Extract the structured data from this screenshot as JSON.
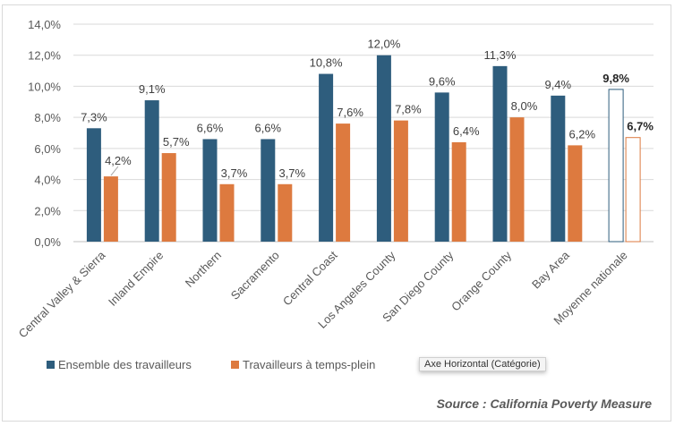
{
  "chart_data": {
    "type": "bar",
    "categories": [
      "Central Valley & Sierra",
      "Inland Empire",
      "Northern",
      "Sacramento",
      "Central Coast",
      "Los Angeles County",
      "San Diego County",
      "Orange County",
      "Bay Area",
      "Moyenne nationale"
    ],
    "series": [
      {
        "name": "Ensemble des travailleurs",
        "color": "#2e5d7d",
        "values": [
          7.3,
          9.1,
          6.6,
          6.6,
          10.8,
          12.0,
          9.6,
          11.3,
          9.4,
          9.8
        ],
        "labels": [
          "7,3%",
          "9,1%",
          "6,6%",
          "6,6%",
          "10,8%",
          "12,0%",
          "9,6%",
          "11,3%",
          "9,4%",
          "9,8%"
        ]
      },
      {
        "name": "Travailleurs à temps-plein",
        "color": "#dd7a3f",
        "values": [
          4.2,
          5.7,
          3.7,
          3.7,
          7.6,
          7.8,
          6.4,
          8.0,
          6.2,
          6.7
        ],
        "labels": [
          "4,2%",
          "5,7%",
          "3,7%",
          "3,7%",
          "7,6%",
          "7,8%",
          "6,4%",
          "8,0%",
          "6,2%",
          "6,7%"
        ]
      }
    ],
    "highlighted_category": "Moyenne nationale",
    "highlight_style": "outline-only, bold labels",
    "ylim": [
      0,
      14
    ],
    "yticks": [
      "0,0%",
      "2,0%",
      "4,0%",
      "6,0%",
      "8,0%",
      "10,0%",
      "12,0%",
      "14,0%"
    ],
    "grid": true,
    "legend_placement": "bottom-left"
  },
  "tooltip": "Axe Horizontal (Catégorie)",
  "source": "Source : California Poverty Measure"
}
